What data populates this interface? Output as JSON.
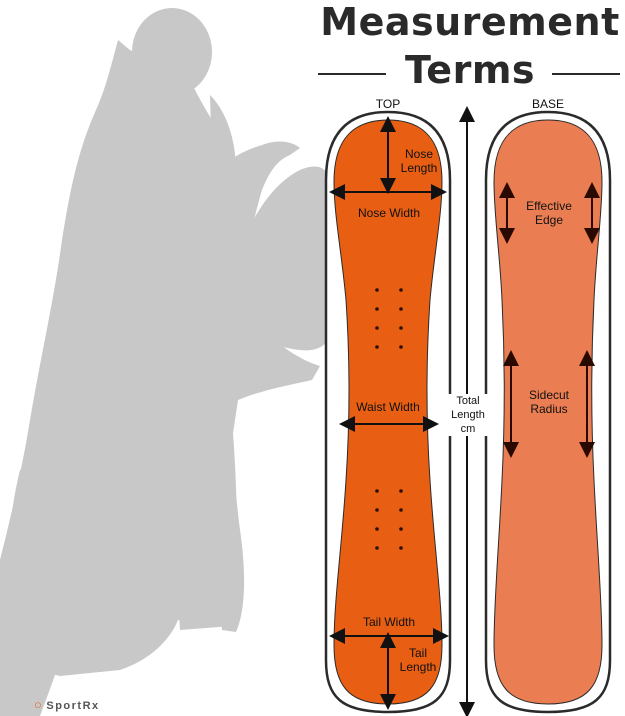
{
  "title": {
    "line1": "Measurement",
    "line2": "Terms"
  },
  "panels": {
    "top": "TOP",
    "base": "BASE"
  },
  "labels": {
    "nose_length": [
      "Nose",
      "Length"
    ],
    "nose_width": "Nose Width",
    "waist_width": "Waist Width",
    "tail_width": "Tail Width",
    "tail_length": [
      "Tail",
      "Length"
    ],
    "total_length": [
      "Total",
      "Length",
      "cm"
    ],
    "effective_edge": [
      "Effective",
      "Edge"
    ],
    "sidecut_radius": [
      "Sidecut",
      "Radius"
    ]
  },
  "brand": {
    "logo_text": "SportRx"
  },
  "colors": {
    "top_board": "#e85e12",
    "base_board": "#ea7e52",
    "outline": "#2b2b2b",
    "silhouette": "#c8c8c8",
    "arrow": "#111111"
  }
}
